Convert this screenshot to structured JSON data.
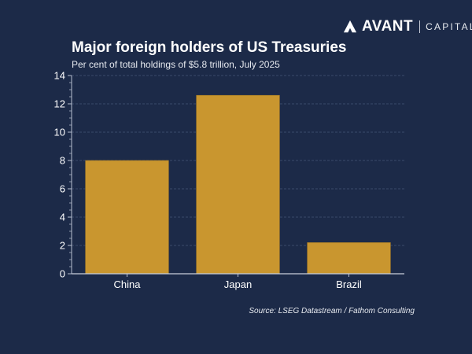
{
  "brand": {
    "name": "AVANT",
    "sub": "CAPITAL"
  },
  "chart_data": {
    "type": "bar",
    "title": "Major foreign holders of US Treasuries",
    "subtitle": "Per cent of total holdings of $5.8 trillion, July 2025",
    "categories": [
      "China",
      "Japan",
      "Brazil"
    ],
    "values": [
      8.0,
      12.6,
      2.2
    ],
    "xlabel": "",
    "ylabel": "",
    "ylim": [
      0,
      14
    ],
    "yticks": [
      0,
      2,
      4,
      6,
      8,
      10,
      12,
      14
    ],
    "ytick_labels": [
      "0",
      "2",
      "4",
      "6",
      "8",
      "10",
      "12",
      "14"
    ],
    "grid": true,
    "bar_color": "#c9962f",
    "source": "Source: LSEG Datastream / Fathom Consulting"
  }
}
